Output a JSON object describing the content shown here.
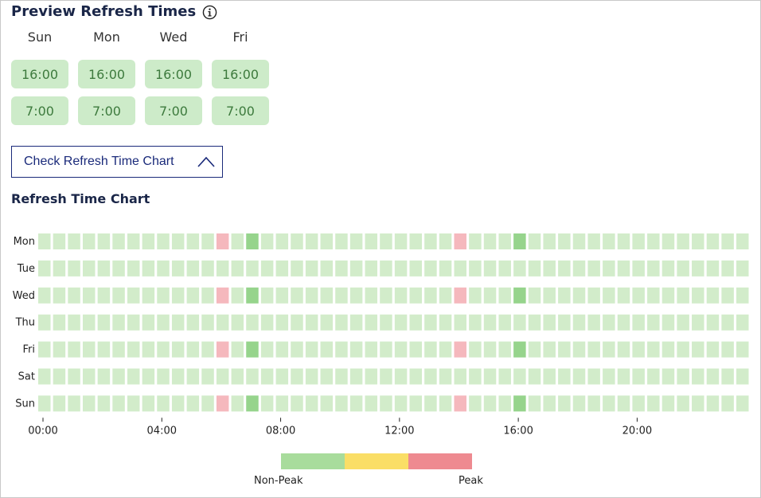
{
  "header": {
    "title": "Preview Refresh Times"
  },
  "preview": {
    "days": [
      {
        "label": "Sun",
        "times": [
          "16:00",
          "7:00"
        ]
      },
      {
        "label": "Mon",
        "times": [
          "16:00",
          "7:00"
        ]
      },
      {
        "label": "Wed",
        "times": [
          "16:00",
          "7:00"
        ]
      },
      {
        "label": "Fri",
        "times": [
          "16:00",
          "7:00"
        ]
      }
    ]
  },
  "toggle": {
    "label": "Check Refresh Time Chart"
  },
  "chart": {
    "title": "Refresh Time Chart"
  },
  "colors": {
    "empty": "#d2ecca",
    "refresh": "#96d48c",
    "peak": "#f5b8bd",
    "legend": [
      "#a8dc9c",
      "#fade66",
      "#ee8a90"
    ]
  },
  "chart_data": {
    "type": "heatmap",
    "rows": [
      "Mon",
      "Tue",
      "Wed",
      "Thu",
      "Fri",
      "Sat",
      "Sun"
    ],
    "columns_per_row": 48,
    "slot_minutes": 30,
    "x_ticks": [
      "00:00",
      "04:00",
      "08:00",
      "12:00",
      "16:00",
      "20:00"
    ],
    "x_tick_hours": [
      0,
      4,
      8,
      12,
      16,
      20
    ],
    "refresh_hours": {
      "Mon": [
        7,
        16
      ],
      "Wed": [
        7,
        16
      ],
      "Fri": [
        7,
        16
      ],
      "Sun": [
        7,
        16
      ]
    },
    "peak_hours": {
      "Mon": [
        6,
        14
      ],
      "Wed": [
        6,
        14
      ],
      "Fri": [
        6,
        14
      ],
      "Sun": [
        6,
        14
      ]
    },
    "legend": {
      "low_label": "Non-Peak",
      "high_label": "Peak"
    }
  }
}
